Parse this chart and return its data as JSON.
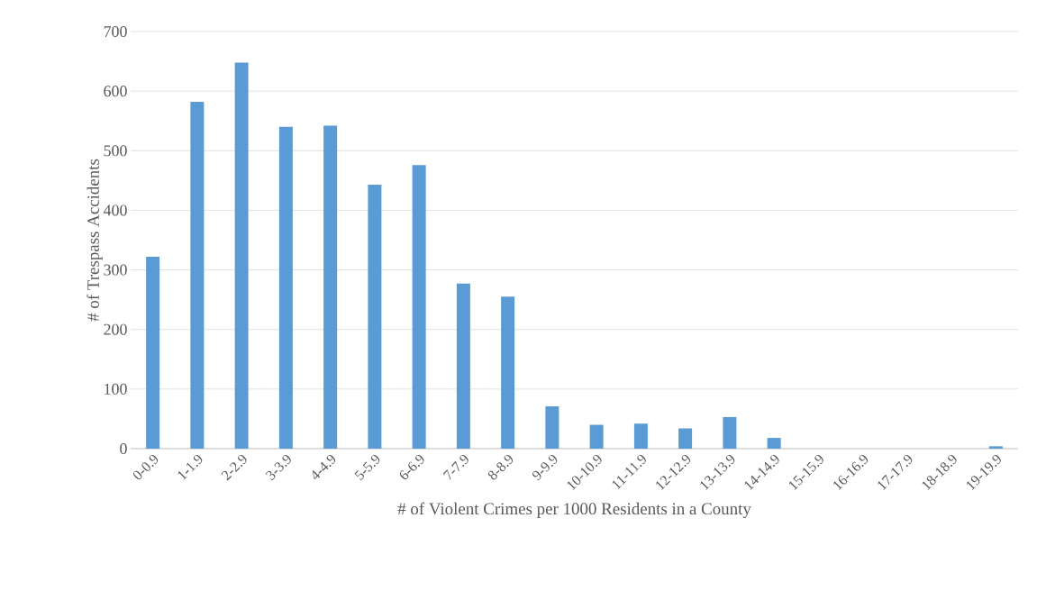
{
  "chart_data": {
    "type": "bar",
    "xlabel": "# of Violent Crimes per 1000 Residents in a County",
    "ylabel": "# of Trespass Accidents",
    "categories": [
      "0-0.9",
      "1-1.9",
      "2-2.9",
      "3-3.9",
      "4-4.9",
      "5-5.9",
      "6-6.9",
      "7-7.9",
      "8-8.9",
      "9-9.9",
      "10-10.9",
      "11-11.9",
      "12-12.9",
      "13-13.9",
      "14-14.9",
      "15-15.9",
      "16-16.9",
      "17-17.9",
      "18-18.9",
      "19-19.9"
    ],
    "values": [
      322,
      582,
      648,
      540,
      542,
      443,
      476,
      277,
      255,
      71,
      40,
      42,
      34,
      53,
      18,
      0,
      0,
      0,
      0,
      4
    ],
    "color": "#5b9bd5",
    "ylim": [
      0,
      700
    ],
    "yticks": [
      0,
      100,
      200,
      300,
      400,
      500,
      600,
      700
    ],
    "grid": "y"
  }
}
